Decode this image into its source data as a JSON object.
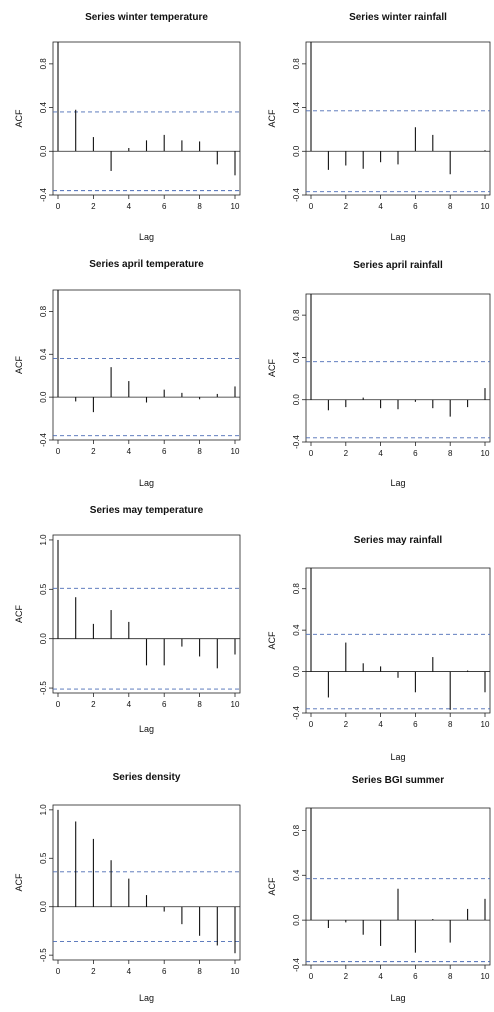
{
  "chart_data": [
    {
      "type": "bar",
      "title": "Series winter temperature",
      "xlabel": "Lag",
      "ylabel": "ACF",
      "x": [
        0,
        1,
        2,
        3,
        4,
        5,
        6,
        7,
        8,
        9,
        10
      ],
      "values": [
        1.0,
        0.38,
        0.13,
        -0.18,
        0.03,
        0.1,
        0.15,
        0.1,
        0.09,
        -0.12,
        -0.22
      ],
      "ci": 0.36,
      "ylim": [
        -0.4,
        1.0
      ],
      "yticks": [
        -0.4,
        0.0,
        0.4,
        0.8
      ],
      "ytick_labels": [
        "-0.4",
        "0.0",
        "0.4",
        "0.8"
      ],
      "xticks": [
        0,
        2,
        4,
        6,
        8,
        10
      ],
      "xtick_labels": [
        "0",
        "2",
        "4",
        "6",
        "8",
        "10"
      ],
      "ci_color": "#4a6bb5"
    },
    {
      "type": "bar",
      "title": "Series winter rainfall",
      "xlabel": "Lag",
      "ylabel": "ACF",
      "x": [
        0,
        1,
        2,
        3,
        4,
        5,
        6,
        7,
        8,
        9,
        10
      ],
      "values": [
        1.0,
        -0.17,
        -0.13,
        -0.16,
        -0.1,
        -0.12,
        0.22,
        0.15,
        -0.21,
        0.0,
        0.01
      ],
      "ci": 0.37,
      "ylim": [
        -0.4,
        1.0
      ],
      "yticks": [
        -0.4,
        0.0,
        0.4,
        0.8
      ],
      "ytick_labels": [
        "-0.4",
        "0.0",
        "0.4",
        "0.8"
      ],
      "xticks": [
        0,
        2,
        4,
        6,
        8,
        10
      ],
      "xtick_labels": [
        "0",
        "2",
        "4",
        "6",
        "8",
        "10"
      ],
      "ci_color": "#4a6bb5"
    },
    {
      "type": "bar",
      "title": "Series april temperature",
      "xlabel": "Lag",
      "ylabel": "ACF",
      "x": [
        0,
        1,
        2,
        3,
        4,
        5,
        6,
        7,
        8,
        9,
        10
      ],
      "values": [
        1.0,
        -0.04,
        -0.14,
        0.28,
        0.15,
        -0.05,
        0.07,
        0.04,
        -0.02,
        0.03,
        0.1
      ],
      "ci": 0.36,
      "ylim": [
        -0.4,
        1.0
      ],
      "yticks": [
        -0.4,
        0.0,
        0.4,
        0.8
      ],
      "ytick_labels": [
        "-0.4",
        "0.0",
        "0.4",
        "0.8"
      ],
      "xticks": [
        0,
        2,
        4,
        6,
        8,
        10
      ],
      "xtick_labels": [
        "0",
        "2",
        "4",
        "6",
        "8",
        "10"
      ],
      "ci_color": "#4a6bb5"
    },
    {
      "type": "bar",
      "title": "Series april rainfall",
      "xlabel": "Lag",
      "ylabel": "ACF",
      "x": [
        0,
        1,
        2,
        3,
        4,
        5,
        6,
        7,
        8,
        9,
        10
      ],
      "values": [
        1.0,
        -0.1,
        -0.07,
        0.02,
        -0.08,
        -0.09,
        -0.02,
        -0.08,
        -0.16,
        -0.07,
        0.11
      ],
      "ci": 0.36,
      "ylim": [
        -0.4,
        1.0
      ],
      "yticks": [
        -0.4,
        0.0,
        0.4,
        0.8
      ],
      "ytick_labels": [
        "-0.4",
        "0.0",
        "0.4",
        "0.8"
      ],
      "xticks": [
        0,
        2,
        4,
        6,
        8,
        10
      ],
      "xtick_labels": [
        "0",
        "2",
        "4",
        "6",
        "8",
        "10"
      ],
      "ci_color": "#4a6bb5"
    },
    {
      "type": "bar",
      "title": "Series may temperature",
      "xlabel": "Lag",
      "ylabel": "ACF",
      "x": [
        0,
        1,
        2,
        3,
        4,
        5,
        6,
        7,
        8,
        9,
        10
      ],
      "values": [
        1.0,
        0.42,
        0.15,
        0.29,
        0.17,
        -0.27,
        -0.27,
        -0.08,
        -0.18,
        -0.3,
        -0.16
      ],
      "ci": 0.51,
      "ylim": [
        -0.55,
        1.05
      ],
      "yticks": [
        -0.5,
        0.0,
        0.5,
        1.0
      ],
      "ytick_labels": [
        "-0.5",
        "0.0",
        "0.5",
        "1.0"
      ],
      "xticks": [
        0,
        2,
        4,
        6,
        8,
        10
      ],
      "xtick_labels": [
        "0",
        "2",
        "4",
        "6",
        "8",
        "10"
      ],
      "ci_color": "#4a6bb5"
    },
    {
      "type": "bar",
      "title": "Series may rainfall",
      "xlabel": "Lag",
      "ylabel": "ACF",
      "x": [
        0,
        1,
        2,
        3,
        4,
        5,
        6,
        7,
        8,
        9,
        10
      ],
      "values": [
        1.0,
        -0.25,
        0.28,
        0.08,
        0.05,
        -0.06,
        -0.2,
        0.14,
        -0.37,
        0.01,
        -0.2
      ],
      "ci": 0.36,
      "ylim": [
        -0.4,
        1.0
      ],
      "yticks": [
        -0.4,
        0.0,
        0.4,
        0.8
      ],
      "ytick_labels": [
        "-0.4",
        "0.0",
        "0.4",
        "0.8"
      ],
      "xticks": [
        0,
        2,
        4,
        6,
        8,
        10
      ],
      "xtick_labels": [
        "0",
        "2",
        "4",
        "6",
        "8",
        "10"
      ],
      "ci_color": "#4a6bb5"
    },
    {
      "type": "bar",
      "title": "Series density",
      "xlabel": "Lag",
      "ylabel": "ACF",
      "x": [
        0,
        1,
        2,
        3,
        4,
        5,
        6,
        7,
        8,
        9,
        10
      ],
      "values": [
        1.0,
        0.88,
        0.7,
        0.48,
        0.29,
        0.12,
        -0.05,
        -0.18,
        -0.3,
        -0.4,
        -0.48
      ],
      "ci": 0.36,
      "ylim": [
        -0.55,
        1.05
      ],
      "yticks": [
        -0.5,
        0.0,
        0.5,
        1.0
      ],
      "ytick_labels": [
        "-0.5",
        "0.0",
        "0.5",
        "1.0"
      ],
      "xticks": [
        0,
        2,
        4,
        6,
        8,
        10
      ],
      "xtick_labels": [
        "0",
        "2",
        "4",
        "6",
        "8",
        "10"
      ],
      "ci_color": "#4a6bb5"
    },
    {
      "type": "bar",
      "title": "Series BGI summer",
      "xlabel": "Lag",
      "ylabel": "ACF",
      "x": [
        0,
        1,
        2,
        3,
        4,
        5,
        6,
        7,
        8,
        9,
        10
      ],
      "values": [
        1.0,
        -0.07,
        -0.02,
        -0.13,
        -0.23,
        0.28,
        -0.29,
        0.01,
        -0.2,
        0.1,
        0.19
      ],
      "ci": 0.37,
      "ylim": [
        -0.4,
        1.0
      ],
      "yticks": [
        -0.4,
        0.0,
        0.4,
        0.8
      ],
      "ytick_labels": [
        "-0.4",
        "0.0",
        "0.4",
        "0.8"
      ],
      "xticks": [
        0,
        2,
        4,
        6,
        8,
        10
      ],
      "xtick_labels": [
        "0",
        "2",
        "4",
        "6",
        "8",
        "10"
      ],
      "ci_color": "#4a6bb5"
    }
  ]
}
